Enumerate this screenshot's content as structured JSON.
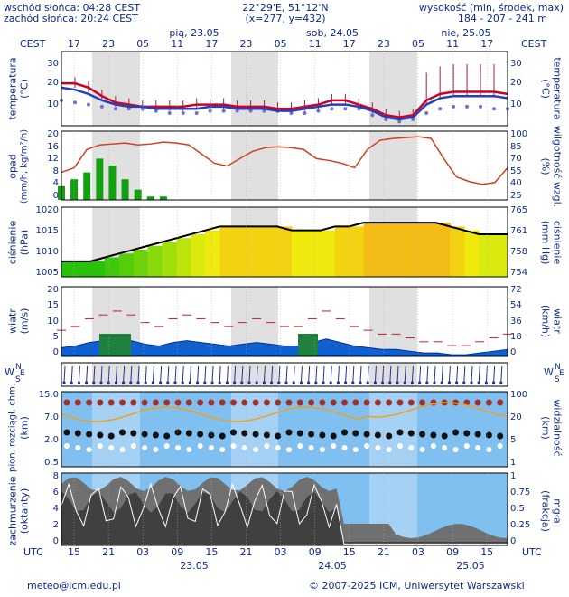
{
  "header": {
    "sunrise": "wschód słońca: 04:28 CEST",
    "sunset": "zachód słońca: 20:24 CEST",
    "coords": "22°29'E, 51°12'N",
    "grid": "(x=277, y=432)",
    "elev_title": "wysokość (min, środek, max)",
    "elev_values": "184 - 207 - 241 m"
  },
  "time_axis": {
    "tz_top": "CEST",
    "tz_bottom": "UTC",
    "day_labels_top": [
      "pią, 23.05",
      "sob, 24.05",
      "nie, 25.05"
    ],
    "hours_top": [
      "17",
      "23",
      "05",
      "11",
      "17",
      "23",
      "05",
      "11",
      "17",
      "23",
      "05",
      "11",
      "17"
    ],
    "hours_bottom": [
      "15",
      "21",
      "03",
      "09",
      "15",
      "21",
      "03",
      "09",
      "15",
      "21",
      "03",
      "09",
      "15"
    ],
    "dates_bottom": [
      "23.05",
      "24.05",
      "25.05"
    ]
  },
  "panels": {
    "temp": {
      "label_left": "temperatura",
      "unit_left": "(°C)",
      "label_right": "temperatura",
      "unit_right": "(°C)",
      "ticks_left": [
        "30",
        "20",
        "10"
      ],
      "ticks_right": [
        "30",
        "20",
        "10"
      ]
    },
    "rain": {
      "label_left": "opad",
      "unit_left": "(mm/h, kg/m²/h)",
      "label_right": "wilgotność wzgl.",
      "unit_right": "(%)",
      "ticks_left": [
        "20",
        "16",
        "12",
        "8",
        "4",
        "0"
      ],
      "ticks_right": [
        "100",
        "85",
        "70",
        "55",
        "40",
        "25"
      ]
    },
    "pressure": {
      "label_left": "ciśnienie",
      "unit_left": "(hPa)",
      "label_right": "ciśnienie",
      "unit_right": "(mm Hg)",
      "ticks_left": [
        "1020",
        "1015",
        "1010",
        "1005"
      ],
      "ticks_right": [
        "765",
        "761",
        "758",
        "754"
      ]
    },
    "wind": {
      "label_left": "wiatr",
      "unit_left": "(m/s)",
      "label_right": "wiatr",
      "unit_right": "(km/h)",
      "ticks_left": [
        "20",
        "15",
        "10",
        "5",
        "0"
      ],
      "ticks_right": [
        "72",
        "54",
        "36",
        "18",
        "0"
      ]
    },
    "direction": {
      "label_left": "W",
      "label_left_n": "N",
      "label_left_s": "S",
      "label_left_e": "E",
      "label_right": "W",
      "label_right_n": "N",
      "label_right_s": "S",
      "label_right_e": "E"
    },
    "visibility": {
      "label_left": "pion. rozciągł. chm.",
      "unit_left": "(km)",
      "label_right": "widzialność",
      "unit_right": "(km)",
      "ticks_left": [
        "15.0",
        "7.0",
        "2.0",
        "0.5"
      ],
      "ticks_right": [
        "100",
        "20",
        "5",
        "1"
      ]
    },
    "clouds": {
      "label_left": "zachmurzenie",
      "unit_left": "(oktanty)",
      "label_right": "mgła",
      "unit_right": "(frakcja)",
      "ticks_left": [
        "8",
        "6",
        "4",
        "2",
        "0"
      ],
      "ticks_right": [
        "1",
        "0.75",
        "0.5",
        "0.25",
        "0"
      ]
    }
  },
  "footer": {
    "email": "meteo@icm.edu.pl",
    "copyright": "© 2007-2025 ICM, Uniwersytet Warszawski"
  },
  "colors": {
    "panel_bg": "#ffffff",
    "night_shade": "#d8d8d8",
    "temp_line": "#d00020",
    "temp_mid": "#2040c0",
    "humidity": "#d04020",
    "rain_bar": "#10a010",
    "pressure_line": "#000000",
    "wind_fill": "#1060d0",
    "visibility_bg": "#80c0f0",
    "cloud_dark": "#404040"
  },
  "chart_data": [
    {
      "type": "line",
      "series": [
        {
          "values": [
            20,
            20,
            18,
            14,
            11,
            10,
            9,
            9,
            9,
            9,
            10,
            10,
            10,
            9,
            9,
            9,
            8,
            8,
            9,
            10,
            12,
            12,
            10,
            8,
            5,
            4,
            5,
            12,
            15,
            16,
            16,
            16,
            16,
            15
          ]
        },
        {
          "values": [
            18,
            17,
            15,
            12,
            10,
            9,
            9,
            8,
            8,
            8,
            8,
            9,
            9,
            8,
            8,
            8,
            7,
            7,
            8,
            9,
            10,
            10,
            9,
            7,
            4,
            3,
            4,
            10,
            13,
            14,
            14,
            14,
            14,
            13
          ]
        },
        {
          "values": [
            12,
            11,
            10,
            9,
            8,
            8,
            8,
            7,
            6,
            6,
            6,
            7,
            7,
            7,
            7,
            7,
            7,
            6,
            6,
            7,
            8,
            8,
            8,
            5,
            3,
            2,
            3,
            6,
            8,
            9,
            9,
            9,
            8,
            8
          ]
        }
      ],
      "ylim": [
        0,
        35
      ]
    },
    {
      "type": "line",
      "series": [
        {
          "values": [
            55,
            60,
            80,
            85,
            86,
            87,
            85,
            86,
            88,
            87,
            85,
            75,
            65,
            62,
            70,
            78,
            82,
            83,
            82,
            80,
            70,
            68,
            65,
            60,
            80,
            90,
            92,
            93,
            94,
            92,
            70,
            50,
            45,
            42,
            44,
            60
          ]
        },
        {
          "values": [
            4,
            6,
            8,
            12,
            10,
            6,
            3,
            1,
            1,
            0,
            0,
            0,
            0,
            0,
            0,
            0,
            0,
            0,
            0,
            0,
            0,
            0,
            0,
            0,
            0,
            0,
            0,
            0,
            0,
            0,
            0,
            0,
            0,
            0,
            0,
            0
          ]
        }
      ],
      "ylim": [
        0,
        20
      ]
    },
    {
      "type": "line",
      "series": [
        {
          "values": [
            1007,
            1007,
            1007,
            1008,
            1009,
            1010,
            1011,
            1012,
            1013,
            1014,
            1015,
            1016,
            1016,
            1016,
            1016,
            1016,
            1015,
            1015,
            1015,
            1016,
            1016,
            1017,
            1017,
            1017,
            1017,
            1017,
            1017,
            1016,
            1015,
            1014,
            1014,
            1014
          ]
        }
      ],
      "ylim": [
        1003,
        1021
      ]
    },
    {
      "type": "area",
      "series": [
        {
          "values": [
            2.5,
            3,
            4,
            4.5,
            5,
            4.5,
            3.5,
            3,
            4,
            4.5,
            4,
            3.5,
            3,
            3.5,
            4,
            3.5,
            3,
            3,
            4,
            5,
            4,
            3,
            2.5,
            2,
            2,
            1.5,
            1,
            1,
            0.5,
            0.5,
            1,
            1.5,
            2
          ]
        }
      ],
      "ylim": [
        0,
        20
      ]
    }
  ]
}
